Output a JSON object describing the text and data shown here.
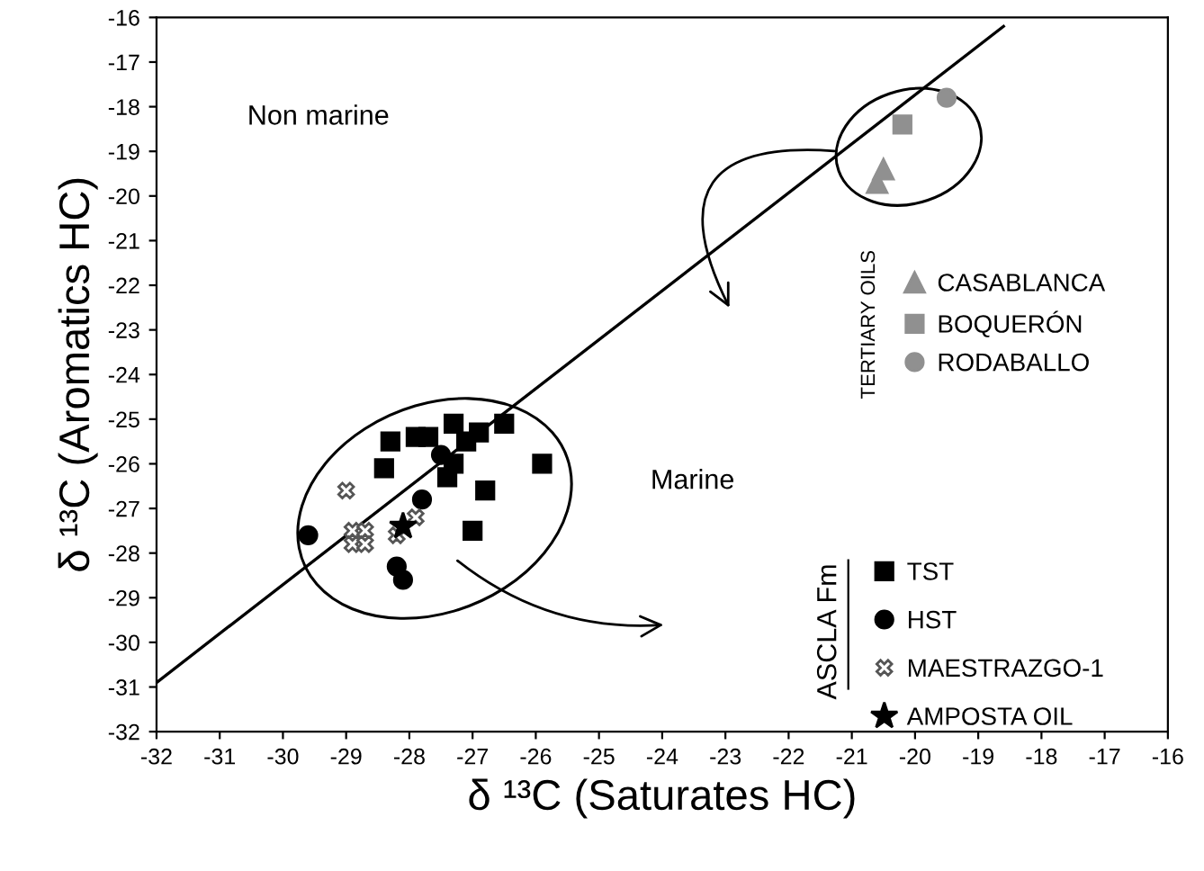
{
  "chart_data": {
    "type": "scatter",
    "xlabel": "δ ¹³C (Saturates HC)",
    "ylabel": "δ ¹³C (Aromatics HC)",
    "xlim": [
      -32,
      -16
    ],
    "ylim": [
      -32,
      -16
    ],
    "xticks": [
      -32,
      -31,
      -30,
      -29,
      -28,
      -27,
      -26,
      -25,
      -24,
      -23,
      -22,
      -21,
      -20,
      -19,
      -18,
      -17,
      -16
    ],
    "yticks": [
      -32,
      -31,
      -30,
      -29,
      -28,
      -27,
      -26,
      -25,
      -24,
      -23,
      -22,
      -21,
      -20,
      -19,
      -18,
      -17,
      -16
    ],
    "grid": false,
    "legend": "right",
    "annotations": [
      "Non marine",
      "Marine",
      "TERTIARY OILS",
      "ASCLA Fm"
    ],
    "series": [
      {
        "type": "line",
        "color": "#000000",
        "x": [
          -32,
          -18.6
        ],
        "values": [
          -30.9,
          -16.2
        ],
        "marker": "none",
        "line_style": "solid"
      },
      {
        "name": "CASABLANCA",
        "color": "#909090",
        "marker": "triangle",
        "x": [
          -20.5,
          -20.6
        ],
        "values": [
          -19.4,
          -19.7
        ]
      },
      {
        "name": "BOQUERÓN",
        "color": "#909090",
        "marker": "square",
        "x": [
          -20.2
        ],
        "values": [
          -18.4
        ]
      },
      {
        "name": "RODABALLO",
        "color": "#909090",
        "marker": "circle",
        "x": [
          -19.5
        ],
        "values": [
          -17.8
        ]
      },
      {
        "name": "TST",
        "color": "#000000",
        "marker": "square",
        "x": [
          -28.3,
          -28.4,
          -27.9,
          -27.7,
          -27.3,
          -27.1,
          -26.9,
          -26.5,
          -27.3,
          -27.4,
          -26.8,
          -27.0,
          -25.9
        ],
        "values": [
          -25.5,
          -26.1,
          -25.4,
          -25.4,
          -25.1,
          -25.5,
          -25.3,
          -25.1,
          -26.0,
          -26.3,
          -26.6,
          -27.5,
          -26.0
        ]
      },
      {
        "name": "HST",
        "color": "#000000",
        "marker": "circle",
        "x": [
          -29.6,
          -27.5,
          -27.8,
          -28.2,
          -28.1
        ],
        "values": [
          -27.6,
          -25.8,
          -26.8,
          -28.3,
          -28.6
        ]
      },
      {
        "name": "MAESTRAZGO-1",
        "color": "#555555",
        "marker": "cross",
        "x": [
          -29.0,
          -28.9,
          -28.7,
          -28.9,
          -28.7,
          -28.2,
          -27.9
        ],
        "values": [
          -26.6,
          -27.5,
          -27.5,
          -27.8,
          -27.8,
          -27.6,
          -27.2
        ]
      },
      {
        "name": "AMPOSTA OIL",
        "color": "#000000",
        "marker": "star",
        "x": [
          -28.1
        ],
        "values": [
          -27.4
        ]
      }
    ]
  }
}
